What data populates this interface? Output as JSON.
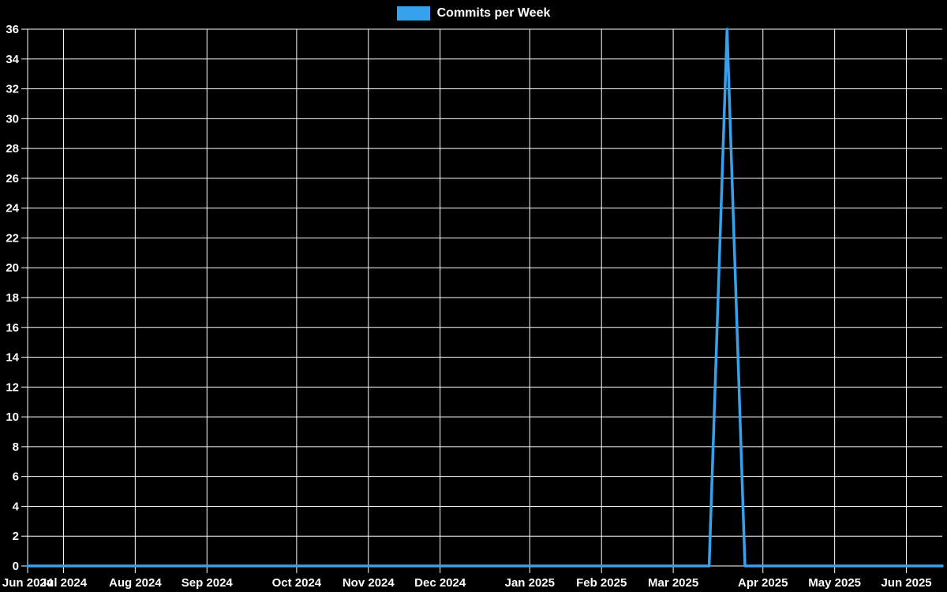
{
  "page": {
    "background": "#000000"
  },
  "legend": {
    "label": "Commits per Week",
    "swatch_color": "#36A2EB"
  },
  "chart_data": {
    "type": "line",
    "title": "",
    "xlabel": "",
    "ylabel": "",
    "x_unit": "week",
    "num_weeks": 52,
    "ylim": [
      0,
      36
    ],
    "y_tick_step": 2,
    "grid": true,
    "legend_position": "top",
    "colors": {
      "background": "#000000",
      "grid": "#ffffff",
      "text": "#ffffff"
    },
    "series": [
      {
        "name": "Commits per Week",
        "color": "#36A2EB",
        "values": [
          0,
          0,
          0,
          0,
          0,
          0,
          0,
          0,
          0,
          0,
          0,
          0,
          0,
          0,
          0,
          0,
          0,
          0,
          0,
          0,
          0,
          0,
          0,
          0,
          0,
          0,
          0,
          0,
          0,
          0,
          0,
          0,
          0,
          0,
          0,
          0,
          0,
          0,
          0,
          36,
          0,
          0,
          0,
          0,
          0,
          0,
          0,
          0,
          0,
          0,
          0,
          0
        ]
      }
    ],
    "peak": {
      "value": 36,
      "week_index": 39,
      "near_x_label": "Mar 2025"
    },
    "x_ticks": [
      {
        "label": "Jun 2024",
        "week_index": 0
      },
      {
        "label": "Jul 2024",
        "week_index": 2
      },
      {
        "label": "Aug 2024",
        "week_index": 6
      },
      {
        "label": "Sep 2024",
        "week_index": 10
      },
      {
        "label": "Oct 2024",
        "week_index": 15
      },
      {
        "label": "Nov 2024",
        "week_index": 19
      },
      {
        "label": "Dec 2024",
        "week_index": 23
      },
      {
        "label": "Jan 2025",
        "week_index": 28
      },
      {
        "label": "Feb 2025",
        "week_index": 32
      },
      {
        "label": "Mar 2025",
        "week_index": 36
      },
      {
        "label": "Apr 2025",
        "week_index": 41
      },
      {
        "label": "May 2025",
        "week_index": 45
      },
      {
        "label": "Jun 2025",
        "week_index": 49
      }
    ]
  }
}
